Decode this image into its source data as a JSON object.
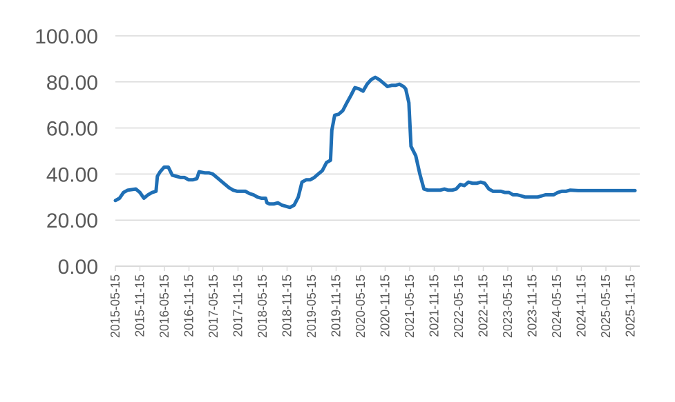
{
  "chart_data": {
    "type": "line",
    "title": "",
    "xlabel": "",
    "ylabel": "",
    "ylim": [
      0,
      100
    ],
    "yticks": [
      "0.00",
      "20.00",
      "40.00",
      "60.00",
      "80.00",
      "100.00"
    ],
    "grid": true,
    "legend": "none",
    "line_color": "#1f6fb5",
    "xticks": [
      "2015-05-15",
      "2015-11-15",
      "2016-05-15",
      "2016-11-15",
      "2017-05-15",
      "2017-11-15",
      "2018-05-15",
      "2018-11-15",
      "2019-05-15",
      "2019-11-15",
      "2020-05-15",
      "2020-11-15",
      "2021-05-15",
      "2021-11-15",
      "2022-05-15",
      "2022-11-15",
      "2023-05-15",
      "2023-11-15",
      "2024-05-15",
      "2024-11-15",
      "2025-05-15",
      "2025-11-15"
    ],
    "series": [
      {
        "values": [
          [
            "2015-05-15",
            28.5
          ],
          [
            "2015-06-15",
            29.5
          ],
          [
            "2015-07-15",
            32.0
          ],
          [
            "2015-08-15",
            33.0
          ],
          [
            "2015-10-15",
            33.5
          ],
          [
            "2015-11-15",
            32.0
          ],
          [
            "2015-12-15",
            29.5
          ],
          [
            "2016-01-15",
            31.0
          ],
          [
            "2016-02-15",
            32.0
          ],
          [
            "2016-03-15",
            32.5
          ],
          [
            "2016-03-25",
            39.0
          ],
          [
            "2016-04-15",
            41.0
          ],
          [
            "2016-05-15",
            43.0
          ],
          [
            "2016-06-15",
            43.0
          ],
          [
            "2016-07-15",
            39.5
          ],
          [
            "2016-08-15",
            39.0
          ],
          [
            "2016-09-15",
            38.5
          ],
          [
            "2016-10-15",
            38.5
          ],
          [
            "2016-11-15",
            37.5
          ],
          [
            "2016-12-15",
            37.5
          ],
          [
            "2017-01-15",
            38.0
          ],
          [
            "2017-02-01",
            41.0
          ],
          [
            "2017-03-15",
            40.5
          ],
          [
            "2017-04-15",
            40.5
          ],
          [
            "2017-05-15",
            40.0
          ],
          [
            "2017-06-15",
            38.5
          ],
          [
            "2017-07-15",
            37.0
          ],
          [
            "2017-08-15",
            35.5
          ],
          [
            "2017-09-15",
            34.0
          ],
          [
            "2017-10-15",
            33.0
          ],
          [
            "2017-11-15",
            32.5
          ],
          [
            "2017-12-15",
            32.5
          ],
          [
            "2018-01-15",
            32.5
          ],
          [
            "2018-02-15",
            31.5
          ],
          [
            "2018-03-15",
            31.0
          ],
          [
            "2018-04-15",
            30.0
          ],
          [
            "2018-05-15",
            29.5
          ],
          [
            "2018-06-15",
            29.5
          ],
          [
            "2018-06-25",
            27.5
          ],
          [
            "2018-07-15",
            27.0
          ],
          [
            "2018-08-15",
            27.0
          ],
          [
            "2018-09-15",
            27.5
          ],
          [
            "2018-10-15",
            26.5
          ],
          [
            "2018-11-15",
            26.0
          ],
          [
            "2018-12-15",
            25.5
          ],
          [
            "2019-01-15",
            26.5
          ],
          [
            "2019-02-15",
            30.0
          ],
          [
            "2019-03-15",
            36.5
          ],
          [
            "2019-04-15",
            37.5
          ],
          [
            "2019-05-15",
            37.5
          ],
          [
            "2019-06-15",
            38.5
          ],
          [
            "2019-07-15",
            40.0
          ],
          [
            "2019-08-15",
            41.5
          ],
          [
            "2019-09-15",
            45.0
          ],
          [
            "2019-10-15",
            46.0
          ],
          [
            "2019-10-25",
            59.0
          ],
          [
            "2019-11-15",
            65.5
          ],
          [
            "2019-12-15",
            66.0
          ],
          [
            "2020-01-15",
            67.5
          ],
          [
            "2020-02-15",
            71.0
          ],
          [
            "2020-03-15",
            74.0
          ],
          [
            "2020-04-15",
            77.5
          ],
          [
            "2020-05-15",
            77.0
          ],
          [
            "2020-06-15",
            76.0
          ],
          [
            "2020-07-15",
            79.0
          ],
          [
            "2020-08-15",
            81.0
          ],
          [
            "2020-09-15",
            82.0
          ],
          [
            "2020-10-15",
            81.0
          ],
          [
            "2020-11-15",
            79.5
          ],
          [
            "2020-12-15",
            78.0
          ],
          [
            "2021-01-15",
            78.5
          ],
          [
            "2021-02-15",
            78.5
          ],
          [
            "2021-03-15",
            79.0
          ],
          [
            "2021-04-15",
            78.0
          ],
          [
            "2021-05-01",
            77.0
          ],
          [
            "2021-05-25",
            71.0
          ],
          [
            "2021-06-10",
            52.0
          ],
          [
            "2021-07-15",
            48.0
          ],
          [
            "2021-08-15",
            40.0
          ],
          [
            "2021-09-15",
            33.5
          ],
          [
            "2021-10-15",
            33.0
          ],
          [
            "2021-11-15",
            33.0
          ],
          [
            "2021-12-15",
            33.0
          ],
          [
            "2022-01-15",
            33.0
          ],
          [
            "2022-02-15",
            33.5
          ],
          [
            "2022-03-15",
            33.0
          ],
          [
            "2022-04-15",
            33.0
          ],
          [
            "2022-05-15",
            33.5
          ],
          [
            "2022-06-15",
            35.5
          ],
          [
            "2022-07-15",
            35.0
          ],
          [
            "2022-08-15",
            36.5
          ],
          [
            "2022-09-15",
            36.0
          ],
          [
            "2022-10-15",
            36.0
          ],
          [
            "2022-11-15",
            36.5
          ],
          [
            "2022-12-15",
            36.0
          ],
          [
            "2023-01-15",
            33.5
          ],
          [
            "2023-02-15",
            32.5
          ],
          [
            "2023-03-15",
            32.5
          ],
          [
            "2023-04-15",
            32.5
          ],
          [
            "2023-05-15",
            32.0
          ],
          [
            "2023-06-15",
            32.0
          ],
          [
            "2023-07-15",
            31.0
          ],
          [
            "2023-08-15",
            31.0
          ],
          [
            "2023-09-15",
            30.5
          ],
          [
            "2023-10-15",
            30.0
          ],
          [
            "2023-11-15",
            30.0
          ],
          [
            "2023-12-15",
            30.0
          ],
          [
            "2024-01-15",
            30.0
          ],
          [
            "2024-02-15",
            30.5
          ],
          [
            "2024-03-15",
            31.0
          ],
          [
            "2024-04-15",
            31.0
          ],
          [
            "2024-05-15",
            31.0
          ],
          [
            "2024-06-15",
            32.0
          ],
          [
            "2024-07-15",
            32.5
          ],
          [
            "2024-08-15",
            32.5
          ],
          [
            "2024-09-15",
            33.0
          ],
          [
            "2024-11-15",
            32.8
          ],
          [
            "2025-02-15",
            32.8
          ],
          [
            "2025-05-15",
            32.8
          ],
          [
            "2025-08-15",
            32.8
          ],
          [
            "2025-11-15",
            32.8
          ],
          [
            "2026-01-15",
            32.8
          ]
        ]
      }
    ]
  }
}
